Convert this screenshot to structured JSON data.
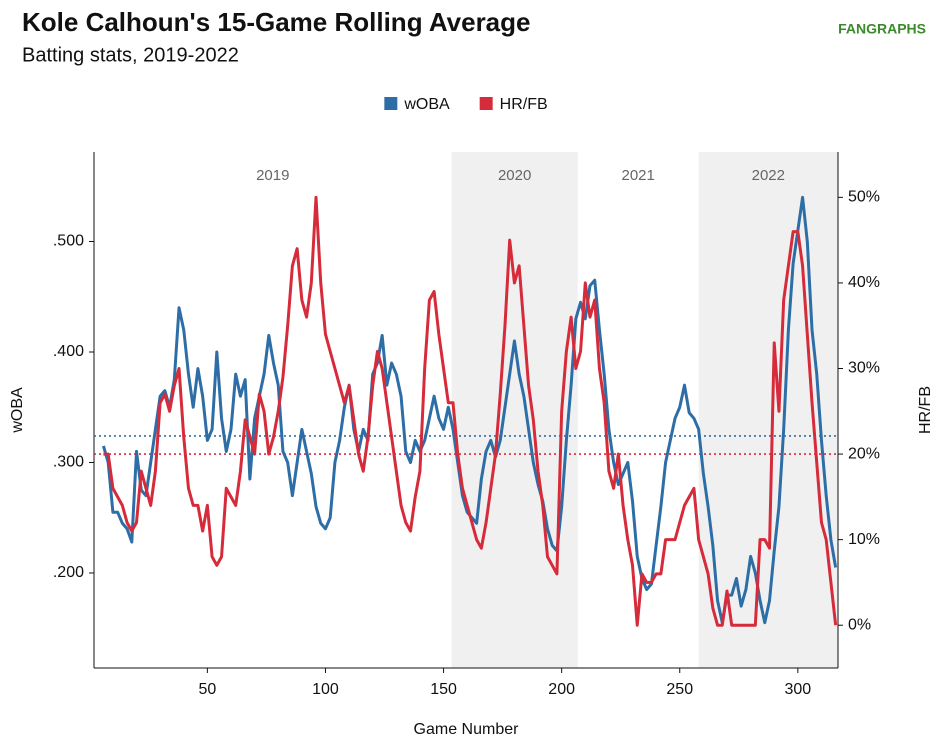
{
  "chart_data": {
    "type": "line",
    "title": "Kole Calhoun's 15-Game Rolling Average",
    "subtitle": "Batting stats, 2019-2022",
    "logo": "FANGRAPHS",
    "x_label": "Game Number",
    "y_label": "wOBA",
    "y2_label": "HR/FB",
    "legend": "top",
    "xlim": [
      2,
      317
    ],
    "xticks": [
      50,
      100,
      150,
      200,
      250,
      300
    ],
    "ylim": [
      0.114,
      0.581
    ],
    "yticks": [
      {
        "value": 0.2,
        "label": ".200"
      },
      {
        "value": 0.3,
        "label": ".300"
      },
      {
        "value": 0.4,
        "label": ".400"
      },
      {
        "value": 0.5,
        "label": ".500"
      }
    ],
    "y2lim": [
      -5,
      55.3
    ],
    "y2ticks": [
      {
        "value": 0,
        "label": "0%"
      },
      {
        "value": 10,
        "label": "10%"
      },
      {
        "value": 20,
        "label": "20%"
      },
      {
        "value": 30,
        "label": "30%"
      },
      {
        "value": 40,
        "label": "40%"
      },
      {
        "value": 50,
        "label": "50%"
      }
    ],
    "seasons": [
      {
        "label": "2019",
        "start": 2,
        "end": 153.4,
        "shaded": false
      },
      {
        "label": "2020",
        "start": 153.4,
        "end": 206.8,
        "shaded": true
      },
      {
        "label": "2021",
        "start": 206.8,
        "end": 258,
        "shaded": false
      },
      {
        "label": "2022",
        "start": 258,
        "end": 317,
        "shaded": true
      }
    ],
    "reference_lines": [
      {
        "axis": "y",
        "value": 0.324,
        "color": "#2e6ea6"
      },
      {
        "axis": "y2",
        "value": 20,
        "color": "#d62b3a"
      }
    ],
    "x": [
      6,
      8,
      10,
      12,
      14,
      16,
      18,
      20,
      22,
      24,
      26,
      28,
      30,
      32,
      34,
      36,
      38,
      40,
      42,
      44,
      46,
      48,
      50,
      52,
      54,
      56,
      58,
      60,
      62,
      64,
      66,
      68,
      70,
      72,
      74,
      76,
      78,
      80,
      82,
      84,
      86,
      88,
      90,
      92,
      94,
      96,
      98,
      100,
      102,
      104,
      106,
      108,
      110,
      112,
      114,
      116,
      118,
      120,
      122,
      124,
      126,
      128,
      130,
      132,
      134,
      136,
      138,
      140,
      142,
      144,
      146,
      148,
      150,
      152,
      154,
      156,
      158,
      160,
      162,
      164,
      166,
      168,
      170,
      172,
      174,
      176,
      178,
      180,
      182,
      184,
      186,
      188,
      190,
      192,
      194,
      196,
      198,
      200,
      202,
      204,
      206,
      208,
      210,
      212,
      214,
      216,
      218,
      220,
      222,
      224,
      226,
      228,
      230,
      232,
      234,
      236,
      238,
      240,
      242,
      244,
      246,
      248,
      250,
      252,
      254,
      256,
      258,
      260,
      262,
      264,
      266,
      268,
      270,
      272,
      274,
      276,
      278,
      280,
      282,
      284,
      286,
      288,
      290,
      292,
      294,
      296,
      298,
      300,
      302,
      304,
      306,
      308,
      310,
      312,
      314,
      316
    ],
    "series": [
      {
        "name": "wOBA",
        "color": "#2e6ea6",
        "axis": "y",
        "values": [
          0.315,
          0.3,
          0.255,
          0.255,
          0.245,
          0.24,
          0.228,
          0.31,
          0.275,
          0.27,
          0.3,
          0.33,
          0.36,
          0.365,
          0.35,
          0.375,
          0.44,
          0.42,
          0.38,
          0.35,
          0.385,
          0.36,
          0.32,
          0.33,
          0.4,
          0.34,
          0.31,
          0.33,
          0.38,
          0.36,
          0.375,
          0.285,
          0.34,
          0.36,
          0.38,
          0.415,
          0.39,
          0.37,
          0.31,
          0.3,
          0.27,
          0.3,
          0.33,
          0.31,
          0.29,
          0.26,
          0.245,
          0.24,
          0.25,
          0.3,
          0.32,
          0.35,
          0.37,
          0.33,
          0.31,
          0.33,
          0.32,
          0.38,
          0.39,
          0.415,
          0.37,
          0.39,
          0.38,
          0.36,
          0.31,
          0.3,
          0.32,
          0.31,
          0.32,
          0.34,
          0.36,
          0.34,
          0.33,
          0.35,
          0.33,
          0.3,
          0.27,
          0.255,
          0.25,
          0.245,
          0.285,
          0.31,
          0.32,
          0.305,
          0.32,
          0.35,
          0.38,
          0.41,
          0.38,
          0.36,
          0.33,
          0.3,
          0.28,
          0.265,
          0.24,
          0.225,
          0.22,
          0.26,
          0.32,
          0.37,
          0.43,
          0.445,
          0.43,
          0.46,
          0.465,
          0.42,
          0.38,
          0.33,
          0.3,
          0.28,
          0.29,
          0.3,
          0.265,
          0.215,
          0.195,
          0.185,
          0.19,
          0.225,
          0.26,
          0.3,
          0.32,
          0.34,
          0.35,
          0.37,
          0.345,
          0.34,
          0.33,
          0.29,
          0.26,
          0.225,
          0.175,
          0.155,
          0.18,
          0.18,
          0.195,
          0.17,
          0.185,
          0.215,
          0.2,
          0.175,
          0.155,
          0.175,
          0.22,
          0.26,
          0.33,
          0.42,
          0.48,
          0.51,
          0.54,
          0.5,
          0.42,
          0.38,
          0.32,
          0.27,
          0.23,
          0.205
        ]
      },
      {
        "name": "HR/FB",
        "color": "#d62b3a",
        "axis": "y2",
        "values": [
          20,
          20,
          16,
          15,
          14,
          12,
          11,
          12,
          18,
          16,
          14,
          18,
          26,
          27,
          25,
          28,
          30,
          22,
          16,
          14,
          14,
          11,
          14,
          8,
          7,
          8,
          16,
          15,
          14,
          18,
          24,
          22,
          20,
          27,
          25,
          20,
          22,
          25,
          29,
          35,
          42,
          44,
          38,
          36,
          40,
          50,
          40,
          34,
          32,
          30,
          28,
          26,
          28,
          24,
          20,
          18,
          22,
          28,
          32,
          30,
          26,
          22,
          18,
          14,
          12,
          11,
          15,
          18,
          30,
          38,
          39,
          34,
          30,
          26,
          26,
          20,
          16,
          14,
          12,
          10,
          9,
          12,
          16,
          20,
          27,
          35,
          45,
          40,
          42,
          35,
          28,
          24,
          18,
          14,
          8,
          7,
          6,
          25,
          32,
          36,
          30,
          32,
          40,
          36,
          38,
          30,
          26,
          18,
          16,
          20,
          14,
          10,
          7,
          0,
          6,
          5,
          5,
          6,
          6,
          10,
          10,
          10,
          12,
          14,
          15,
          16,
          10,
          8,
          6,
          2,
          0,
          0,
          4,
          0,
          0,
          0,
          0,
          0,
          0,
          10,
          10,
          9,
          33,
          25,
          38,
          42,
          46,
          46,
          42,
          34,
          26,
          19,
          12,
          10,
          5,
          0
        ]
      }
    ]
  }
}
